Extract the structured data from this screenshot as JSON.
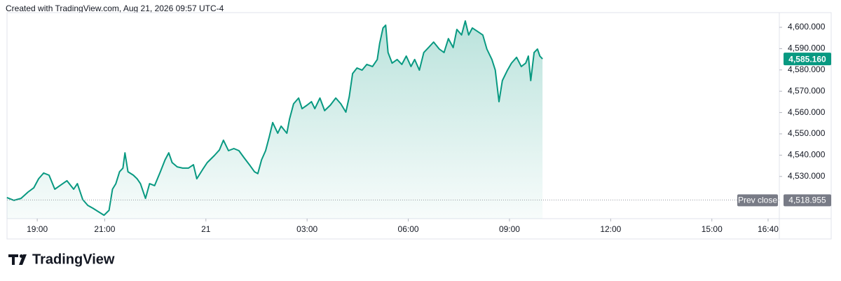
{
  "chart_data": {
    "type": "area",
    "caption": "Created with TradingView.com, Aug 21, 2026 09:57 UTC-4",
    "brand": "TradingView",
    "color": "#089981",
    "x": [
      18.1,
      18.31,
      18.52,
      18.73,
      18.9,
      19.04,
      19.19,
      19.35,
      19.52,
      19.67,
      19.88,
      20.08,
      20.19,
      20.35,
      20.5,
      20.65,
      20.81,
      20.98,
      21.13,
      21.23,
      21.33,
      21.44,
      21.54,
      21.6,
      21.69,
      21.85,
      21.96,
      22.06,
      22.21,
      22.33,
      22.48,
      22.65,
      22.79,
      22.9,
      23.0,
      23.15,
      23.31,
      23.48,
      23.63,
      23.73,
      23.9,
      24.04,
      24.25,
      24.4,
      24.52,
      24.67,
      24.83,
      24.98,
      25.13,
      25.29,
      25.44,
      25.54,
      25.65,
      25.77,
      25.88,
      25.98,
      26.13,
      26.23,
      26.4,
      26.48,
      26.6,
      26.75,
      26.85,
      27.0,
      27.13,
      27.23,
      27.38,
      27.52,
      27.69,
      27.85,
      28.0,
      28.15,
      28.25,
      28.35,
      28.48,
      28.63,
      28.77,
      28.94,
      29.08,
      29.15,
      29.25,
      29.33,
      29.4,
      29.52,
      29.67,
      29.81,
      29.94,
      30.08,
      30.19,
      30.33,
      30.46,
      30.6,
      30.75,
      30.92,
      31.06,
      31.19,
      31.33,
      31.44,
      31.58,
      31.69,
      31.79,
      31.9,
      32.06,
      32.21,
      32.33,
      32.48,
      32.58,
      32.69,
      32.79,
      32.94,
      33.06,
      33.21,
      33.35,
      33.48,
      33.56,
      33.63,
      33.73,
      33.83,
      33.9,
      33.98
    ],
    "values": [
      4520.1,
      4518.8,
      4519.7,
      4522.7,
      4524.7,
      4528.9,
      4531.6,
      4530.6,
      4524.0,
      4525.7,
      4528.0,
      4524.0,
      4526.6,
      4519.1,
      4516.4,
      4515.1,
      4513.5,
      4511.8,
      4514.1,
      4524.0,
      4526.6,
      4532.2,
      4533.9,
      4541.1,
      4532.2,
      4530.6,
      4528.9,
      4526.6,
      4519.7,
      4526.6,
      4525.7,
      4532.2,
      4537.8,
      4541.1,
      4536.5,
      4534.5,
      4533.9,
      4533.9,
      4535.5,
      4528.9,
      4533.2,
      4536.5,
      4539.8,
      4542.4,
      4547.0,
      4542.1,
      4543.1,
      4542.1,
      4538.8,
      4535.5,
      4532.2,
      4531.3,
      4537.8,
      4542.1,
      4548.7,
      4555.3,
      4550.3,
      4553.6,
      4550.3,
      4556.9,
      4564.1,
      4566.8,
      4561.8,
      4563.5,
      4565.1,
      4561.8,
      4566.8,
      4560.9,
      4563.5,
      4566.8,
      4564.1,
      4560.2,
      4567.4,
      4578.3,
      4580.9,
      4579.9,
      4582.6,
      4581.6,
      4584.9,
      4592.4,
      4599.7,
      4601.0,
      4588.2,
      4583.2,
      4584.9,
      4582.6,
      4586.5,
      4581.6,
      4584.9,
      4579.9,
      4588.2,
      4590.5,
      4593.1,
      4589.8,
      4588.2,
      4594.7,
      4590.5,
      4599.0,
      4596.4,
      4603.0,
      4596.4,
      4599.7,
      4598.0,
      4596.4,
      4589.8,
      4584.9,
      4579.9,
      4565.1,
      4575.0,
      4579.9,
      4583.2,
      4585.9,
      4581.6,
      4583.2,
      4586.5,
      4575.0,
      4588.2,
      4589.8,
      4586.5,
      4585.16
    ],
    "last_value_label": "4,585.160",
    "reference_line": {
      "name": "Prev close",
      "value": 4518.955,
      "label": "4,518.955"
    },
    "xlim": [
      18.104,
      41.0
    ],
    "xticks": [
      {
        "value": 19,
        "label": "19:00"
      },
      {
        "value": 21,
        "label": "21:00"
      },
      {
        "value": 24,
        "label": "21"
      },
      {
        "value": 27,
        "label": "03:00"
      },
      {
        "value": 30,
        "label": "06:00"
      },
      {
        "value": 33,
        "label": "09:00"
      },
      {
        "value": 36,
        "label": "12:00"
      },
      {
        "value": 39,
        "label": "15:00"
      },
      {
        "value": 40.667,
        "label": "16:40"
      }
    ],
    "ylim": [
      4510.2,
      4606.9
    ],
    "yticks": [
      {
        "value": 4530,
        "label": "4,530.000"
      },
      {
        "value": 4540,
        "label": "4,540.000"
      },
      {
        "value": 4550,
        "label": "4,550.000"
      },
      {
        "value": 4560,
        "label": "4,560.000"
      },
      {
        "value": 4570,
        "label": "4,570.000"
      },
      {
        "value": 4580,
        "label": "4,580.000"
      },
      {
        "value": 4590,
        "label": "4,590.000"
      },
      {
        "value": 4600,
        "label": "4,600.000"
      }
    ],
    "grid": false
  }
}
